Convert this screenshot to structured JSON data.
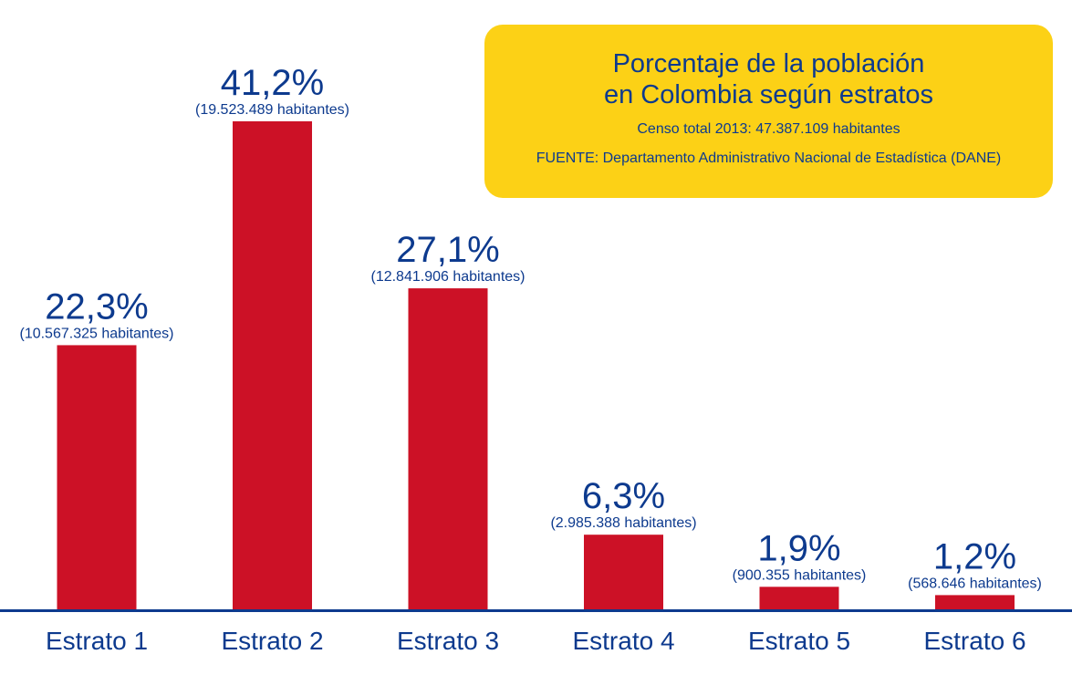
{
  "colors": {
    "bar": "#cc1126",
    "text": "#0d3a8e",
    "axis": "#0d3a8e",
    "box": "#fcd116"
  },
  "title_box": {
    "title_line1": "Porcentaje de la población",
    "title_line2": "en Colombia según estratos",
    "subtitle": "Censo total 2013: 47.387.109 habitantes",
    "source": "FUENTE: Departamento Administrativo Nacional de Estadística (DANE)"
  },
  "chart_data": {
    "type": "bar",
    "title": "Porcentaje de la población en Colombia según estratos",
    "categories": [
      "Estrato 1",
      "Estrato 2",
      "Estrato 3",
      "Estrato 4",
      "Estrato 5",
      "Estrato 6"
    ],
    "values": [
      22.3,
      41.2,
      27.1,
      6.3,
      1.9,
      1.2
    ],
    "value_labels": [
      "22,3%",
      "41,2%",
      "27,1%",
      "6,3%",
      "1,9%",
      "1,2%"
    ],
    "population_labels": [
      "(10.567.325 habitantes)",
      "(19.523.489 habitantes)",
      "(12.841.906 habitantes)",
      "(2.985.388 habitantes)",
      "(900.355 habitantes)",
      "(568.646 habitantes)"
    ],
    "ylim": [
      0,
      41.2
    ],
    "grid": false,
    "legend": "none"
  }
}
